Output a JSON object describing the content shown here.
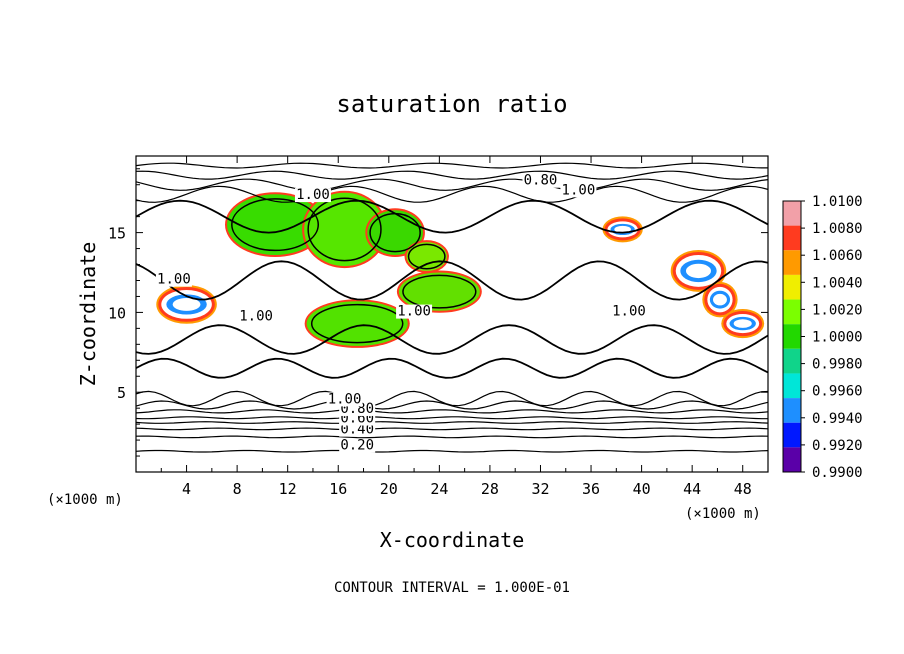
{
  "chart_data": {
    "type": "heatmap",
    "title": "saturation ratio",
    "xlabel": "X-coordinate",
    "ylabel": "Z-coordinate",
    "x_units": "(×1000 m)",
    "y_units": "(×1000 m)",
    "xlim": [
      0,
      50
    ],
    "ylim": [
      0,
      19.8
    ],
    "x_ticks": [
      "4",
      "8",
      "12",
      "16",
      "20",
      "24",
      "28",
      "32",
      "36",
      "40",
      "44",
      "48"
    ],
    "y_ticks": [
      "5",
      "10",
      "15"
    ],
    "footer": "CONTOUR INTERVAL = 1.000E-01",
    "colorbar": {
      "labels": [
        "1.0100",
        "1.0080",
        "1.0060",
        "1.0040",
        "1.0020",
        "1.0000",
        "0.9980",
        "0.9960",
        "0.9940",
        "0.9920",
        "0.9900"
      ],
      "colors": [
        "#f2a0a8",
        "#ff3b1f",
        "#ff9a00",
        "#f0ee00",
        "#7bff00",
        "#22d800",
        "#10d48a",
        "#00e6d8",
        "#1e8fff",
        "#0018ff",
        "#5a00a8"
      ]
    },
    "contour_labels": [
      {
        "text": "0.20",
        "x": 17.5,
        "y": 1.4
      },
      {
        "text": "0.40",
        "x": 17.5,
        "y": 2.4
      },
      {
        "text": "0.60",
        "x": 17.5,
        "y": 3.1
      },
      {
        "text": "0.80",
        "x": 17.5,
        "y": 3.7
      },
      {
        "text": "1.00",
        "x": 16.5,
        "y": 4.3
      },
      {
        "text": "1.00",
        "x": 9.5,
        "y": 9.5
      },
      {
        "text": "1.00",
        "x": 3.0,
        "y": 11.8
      },
      {
        "text": "1.00",
        "x": 14.0,
        "y": 17.1
      },
      {
        "text": "1.00",
        "x": 22.0,
        "y": 9.8
      },
      {
        "text": "1.00",
        "x": 39.0,
        "y": 9.8
      },
      {
        "text": "1.00",
        "x": 35.0,
        "y": 17.4
      },
      {
        "text": "0.80",
        "x": 32.0,
        "y": 18.0
      }
    ]
  }
}
